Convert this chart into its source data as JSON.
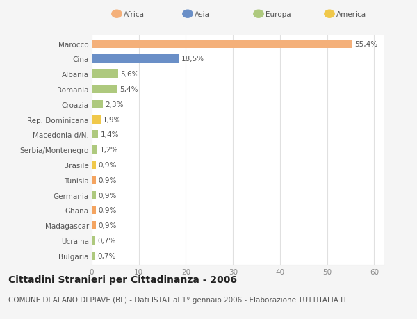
{
  "categories": [
    "Bulgaria",
    "Ucraina",
    "Madagascar",
    "Ghana",
    "Germania",
    "Tunisia",
    "Brasile",
    "Serbia/Montenegro",
    "Macedonia d/N.",
    "Rep. Dominicana",
    "Croazia",
    "Romania",
    "Albania",
    "Cina",
    "Marocco"
  ],
  "values": [
    0.7,
    0.7,
    0.9,
    0.9,
    0.9,
    0.9,
    0.9,
    1.2,
    1.4,
    1.9,
    2.3,
    5.4,
    5.6,
    18.5,
    55.4
  ],
  "labels": [
    "0,7%",
    "0,7%",
    "0,9%",
    "0,9%",
    "0,9%",
    "0,9%",
    "0,9%",
    "1,2%",
    "1,4%",
    "1,9%",
    "2,3%",
    "5,4%",
    "5,6%",
    "18,5%",
    "55,4%"
  ],
  "colors": [
    "#aec97e",
    "#aec97e",
    "#f4a460",
    "#f4a460",
    "#aec97e",
    "#f4a460",
    "#f0c84a",
    "#aec97e",
    "#aec97e",
    "#f0c84a",
    "#aec97e",
    "#aec97e",
    "#aec97e",
    "#6a8fc7",
    "#f4b07a"
  ],
  "continent": [
    "Europa",
    "Europa",
    "Africa",
    "Africa",
    "Europa",
    "Africa",
    "America",
    "Europa",
    "Europa",
    "America",
    "Europa",
    "Europa",
    "Europa",
    "Asia",
    "Africa"
  ],
  "legend_order": [
    "Africa",
    "Asia",
    "Europa",
    "America"
  ],
  "legend_colors": {
    "Africa": "#f4b07a",
    "Asia": "#6a8fc7",
    "Europa": "#aec97e",
    "America": "#f0c84a"
  },
  "xlim": [
    0,
    62
  ],
  "xticks": [
    0,
    10,
    20,
    30,
    40,
    50,
    60
  ],
  "title": "Cittadini Stranieri per Cittadinanza - 2006",
  "subtitle": "COMUNE DI ALANO DI PIAVE (BL) - Dati ISTAT al 1° gennaio 2006 - Elaborazione TUTTITALIA.IT",
  "background_color": "#f5f5f5",
  "bar_bg_color": "#ffffff",
  "grid_color": "#e0e0e0",
  "title_fontsize": 10,
  "subtitle_fontsize": 7.5,
  "label_fontsize": 7.5,
  "tick_fontsize": 7.5,
  "bar_height": 0.55
}
